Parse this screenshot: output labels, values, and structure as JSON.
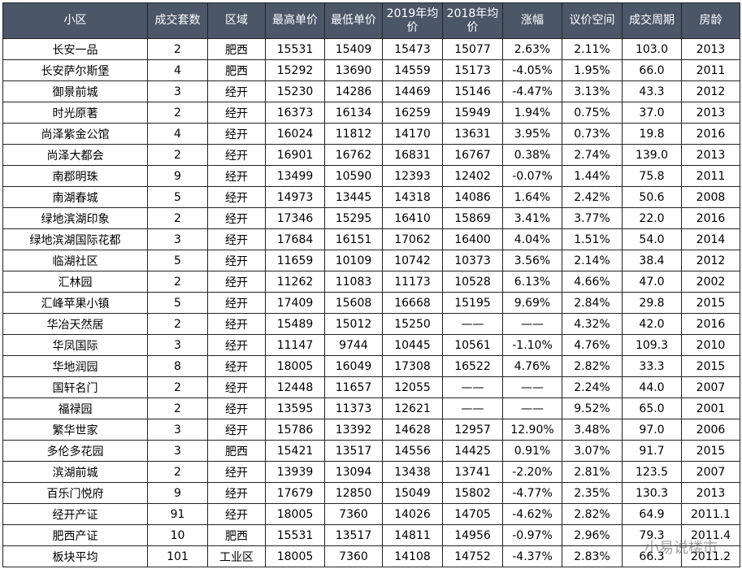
{
  "table": {
    "headers": [
      "小区",
      "成交套数",
      "区域",
      "最高单价",
      "最低单价",
      "2019年均价",
      "2018年均价",
      "涨幅",
      "议价空间",
      "成交周期",
      "房龄"
    ],
    "rows": [
      [
        "长安一品",
        "2",
        "肥西",
        "15531",
        "15409",
        "15473",
        "15077",
        "2.63%",
        "2.11%",
        "103.0",
        "2013"
      ],
      [
        "长安萨尔斯堡",
        "4",
        "肥西",
        "15292",
        "13690",
        "14559",
        "15173",
        "-4.05%",
        "1.95%",
        "66.0",
        "2011"
      ],
      [
        "御景前城",
        "3",
        "经开",
        "15230",
        "14286",
        "14469",
        "15146",
        "-4.47%",
        "3.13%",
        "43.3",
        "2012"
      ],
      [
        "时光原著",
        "2",
        "经开",
        "16373",
        "16134",
        "16259",
        "15949",
        "1.94%",
        "0.75%",
        "37.0",
        "2013"
      ],
      [
        "尚泽紫金公馆",
        "4",
        "经开",
        "16024",
        "11812",
        "14170",
        "13631",
        "3.95%",
        "0.73%",
        "19.8",
        "2016"
      ],
      [
        "尚泽大都会",
        "2",
        "经开",
        "16901",
        "16762",
        "16831",
        "16767",
        "0.38%",
        "2.74%",
        "139.0",
        "2013"
      ],
      [
        "南郡明珠",
        "9",
        "经开",
        "13499",
        "10590",
        "12393",
        "12402",
        "-0.07%",
        "1.44%",
        "75.8",
        "2011"
      ],
      [
        "南湖春城",
        "5",
        "经开",
        "14973",
        "13445",
        "14318",
        "14086",
        "1.64%",
        "2.42%",
        "50.6",
        "2008"
      ],
      [
        "绿地滨湖印象",
        "2",
        "经开",
        "17346",
        "15295",
        "16410",
        "15869",
        "3.41%",
        "3.77%",
        "22.0",
        "2016"
      ],
      [
        "绿地滨湖国际花都",
        "3",
        "经开",
        "17684",
        "16151",
        "17062",
        "16400",
        "4.04%",
        "1.51%",
        "54.0",
        "2014"
      ],
      [
        "临湖社区",
        "5",
        "经开",
        "11659",
        "10109",
        "10742",
        "10373",
        "3.56%",
        "2.14%",
        "38.4",
        "2012"
      ],
      [
        "汇林园",
        "2",
        "经开",
        "11262",
        "11083",
        "11173",
        "10528",
        "6.13%",
        "4.66%",
        "47.0",
        "2002"
      ],
      [
        "汇峰苹果小镇",
        "5",
        "经开",
        "17409",
        "15608",
        "16668",
        "15195",
        "9.69%",
        "2.84%",
        "29.8",
        "2015"
      ],
      [
        "华冶天然居",
        "2",
        "经开",
        "15489",
        "15012",
        "15250",
        "——",
        "——",
        "4.32%",
        "42.0",
        "2016"
      ],
      [
        "华凤国际",
        "3",
        "经开",
        "11147",
        "9744",
        "10445",
        "10561",
        "-1.10%",
        "4.76%",
        "109.3",
        "2010"
      ],
      [
        "华地润园",
        "8",
        "经开",
        "18005",
        "16049",
        "17308",
        "16522",
        "4.76%",
        "2.82%",
        "33.3",
        "2015"
      ],
      [
        "国轩名门",
        "2",
        "经开",
        "12448",
        "11657",
        "12055",
        "——",
        "——",
        "2.24%",
        "44.0",
        "2007"
      ],
      [
        "福禄园",
        "2",
        "经开",
        "13595",
        "11373",
        "12621",
        "——",
        "——",
        "9.52%",
        "65.0",
        "2001"
      ],
      [
        "繁华世家",
        "3",
        "经开",
        "15786",
        "13392",
        "14628",
        "12957",
        "12.90%",
        "3.48%",
        "97.0",
        "2006"
      ],
      [
        "多伦多花园",
        "3",
        "肥西",
        "15421",
        "13517",
        "14556",
        "14425",
        "0.91%",
        "3.07%",
        "91.7",
        "2015"
      ],
      [
        "滨湖前城",
        "2",
        "经开",
        "13939",
        "13094",
        "13438",
        "13741",
        "-2.20%",
        "2.81%",
        "123.5",
        "2007"
      ],
      [
        "百乐门悦府",
        "9",
        "经开",
        "17679",
        "12850",
        "15049",
        "15802",
        "-4.77%",
        "2.35%",
        "130.3",
        "2013"
      ],
      [
        "经开产证",
        "91",
        "经开",
        "18005",
        "7360",
        "14026",
        "14705",
        "-4.62%",
        "2.82%",
        "64.9",
        "2011.1"
      ],
      [
        "肥西产证",
        "10",
        "肥西",
        "15531",
        "13517",
        "14811",
        "14956",
        "-0.97%",
        "2.96%",
        "79.3",
        "2011.4"
      ],
      [
        "板块平均",
        "101",
        "工业区",
        "18005",
        "7360",
        "14108",
        "14752",
        "-4.37%",
        "2.83%",
        "66.3",
        "2011.2"
      ]
    ]
  },
  "watermark": "小易说楼市"
}
